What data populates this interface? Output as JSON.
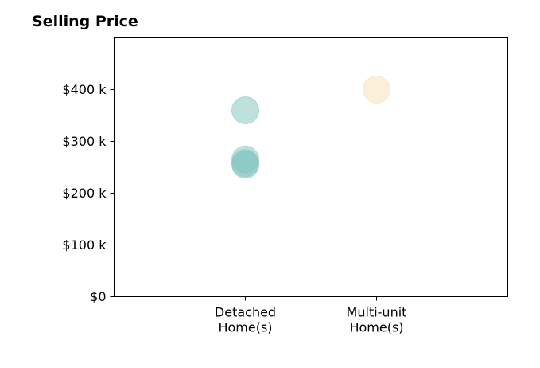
{
  "chart_data": {
    "type": "scatter",
    "title": "Selling Price",
    "xlabel": "",
    "ylabel": "",
    "categories": [
      [
        "Detached",
        "Home(s)"
      ],
      [
        "Multi-unit",
        "Home(s)"
      ]
    ],
    "xlim": [
      -1,
      2
    ],
    "ylim": [
      0,
      500000
    ],
    "yticks": [
      0,
      100000,
      200000,
      300000,
      400000
    ],
    "ytick_labels": [
      "$0",
      "$100 k",
      "$200 k",
      "$300 k",
      "$400 k"
    ],
    "grid": false,
    "legend": false,
    "series": [
      {
        "category": 0,
        "color": "#80c4bd",
        "values": [
          360000,
          265000,
          255000,
          258000
        ]
      },
      {
        "category": 1,
        "color": "#f5dfb4",
        "values": [
          400000
        ]
      }
    ]
  }
}
